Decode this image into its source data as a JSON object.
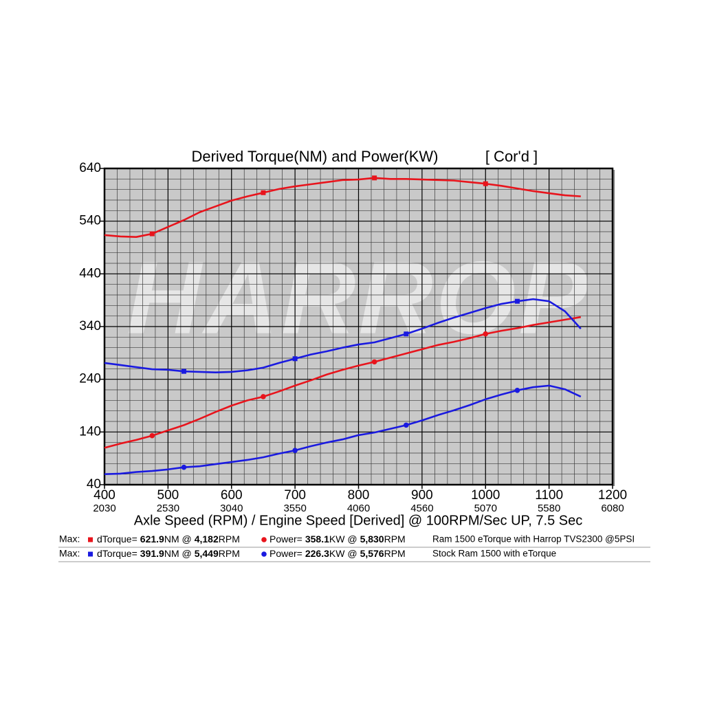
{
  "chart_data": {
    "type": "line",
    "title": "Derived Torque(NM) and Power(KW)",
    "subtitle": "[ Cor'd ]",
    "watermark": "HARROP",
    "xlabel": "Axle Speed (RPM) / Engine Speed [Derived] @ 100RPM/Sec UP, 7.5 Sec",
    "xlim": [
      400,
      1200
    ],
    "ylim": [
      40,
      640
    ],
    "xticks": [
      400,
      500,
      600,
      700,
      800,
      900,
      1000,
      1100,
      1200
    ],
    "x2ticks": [
      2030,
      2530,
      3040,
      3550,
      4060,
      4560,
      5070,
      5580,
      6080
    ],
    "yticks": [
      40,
      140,
      240,
      340,
      440,
      540,
      640
    ],
    "grid": true,
    "grid_step": [
      20,
      20
    ],
    "x": [
      400,
      425,
      450,
      475,
      500,
      525,
      550,
      575,
      600,
      625,
      650,
      675,
      700,
      725,
      750,
      775,
      800,
      825,
      850,
      875,
      900,
      925,
      950,
      975,
      1000,
      1025,
      1050,
      1075,
      1100,
      1125,
      1150
    ],
    "series": [
      {
        "color": "#e8141c",
        "marker": "square",
        "marker_x": [
          475,
          650,
          825,
          1000
        ],
        "values": [
          513.5,
          511,
          510,
          516,
          529,
          542,
          557,
          568,
          579,
          587,
          594,
          601,
          606,
          610,
          614,
          618,
          619,
          622,
          620,
          620,
          619,
          618,
          617,
          614,
          611,
          607,
          602,
          597,
          593,
          589,
          587
        ]
      },
      {
        "color": "#e8141c",
        "marker": "circle",
        "marker_x": [
          475,
          650,
          825,
          1000
        ],
        "values": [
          110,
          118,
          125,
          133,
          143,
          153,
          165,
          178,
          190,
          200,
          207,
          217,
          228,
          238,
          249,
          258,
          266,
          273,
          281,
          289,
          297,
          305,
          311,
          318,
          326,
          332,
          337,
          343,
          348,
          353,
          358
        ]
      },
      {
        "color": "#1a1ae0",
        "marker": "square",
        "marker_x": [
          525,
          700,
          875,
          1050
        ],
        "values": [
          271,
          267,
          263,
          259,
          258,
          255,
          254,
          253,
          254,
          257,
          262,
          271,
          279,
          287,
          293,
          300,
          306,
          310,
          318,
          326,
          336,
          347,
          357,
          366,
          375,
          383,
          388,
          392,
          388,
          369,
          336
        ]
      },
      {
        "color": "#1a1ae0",
        "marker": "circle",
        "marker_x": [
          525,
          700,
          875,
          1050
        ],
        "values": [
          60,
          61,
          64,
          66,
          69,
          73,
          75,
          79,
          83,
          87,
          92,
          99,
          105,
          113,
          120,
          126,
          134,
          139,
          146,
          153,
          162,
          172,
          181,
          191,
          202,
          211,
          219,
          225,
          228,
          221,
          207
        ]
      }
    ]
  },
  "legend_rows": [
    {
      "label": "Max:",
      "color": "#e8141c",
      "torque_label": "dTorque=",
      "torque": 621.9,
      "torque_unit": "NM @",
      "torque_rpm": "4,182",
      "torque_rpm_unit": "RPM",
      "power_label": "Power=",
      "power": 358.1,
      "power_unit": "KW @",
      "power_rpm": "5,830",
      "power_rpm_unit": "RPM",
      "description": "Ram 1500 eTorque with Harrop TVS2300 @5PSI"
    },
    {
      "label": "Max:",
      "color": "#1a1ae0",
      "torque_label": "dTorque=",
      "torque": 391.9,
      "torque_unit": "NM @",
      "torque_rpm": "5,449",
      "torque_rpm_unit": "RPM",
      "power_label": "Power=",
      "power": 226.3,
      "power_unit": "KW @",
      "power_rpm": "5,576",
      "power_rpm_unit": "RPM",
      "description": "Stock Ram 1500 with eTorque"
    }
  ]
}
